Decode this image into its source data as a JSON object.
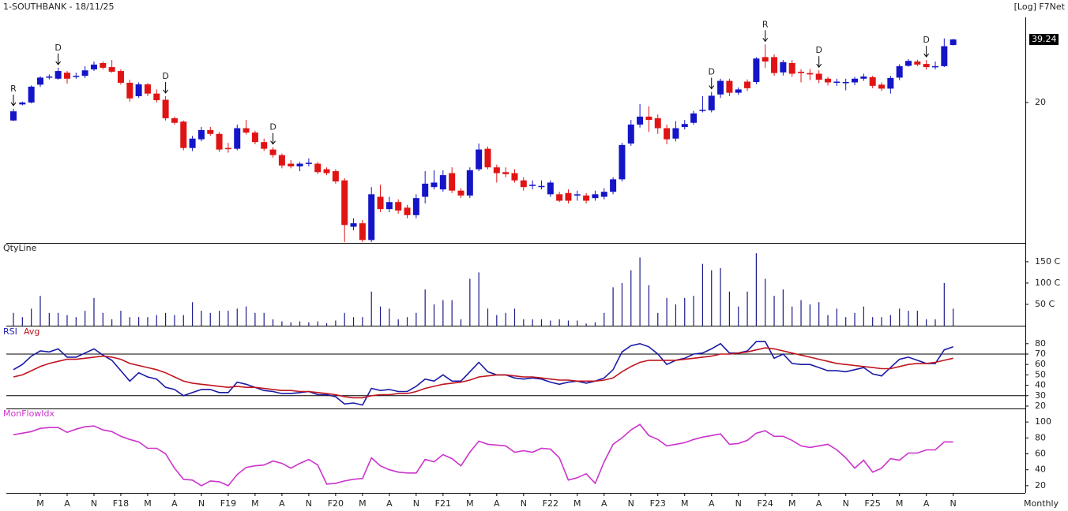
{
  "chart_data": [
    {
      "type": "candlestick",
      "title": "1-SOUTHBANK - 18/11/25",
      "scale_label": "[Log] F7Net",
      "log": true,
      "up_color": "#1414c8",
      "down_color": "#e01414",
      "ylim": [
        4.46,
        49.7
      ],
      "yticks": [
        20
      ],
      "open": [
        16.5,
        19.6,
        20,
        24.2,
        26.1,
        25.8,
        27.5,
        26.4,
        26.6,
        28.5,
        30.5,
        29.2,
        28,
        24.7,
        21.4,
        24.3,
        22,
        20.6,
        16.9,
        16.3,
        12.3,
        13.5,
        14.9,
        14.3,
        12.3,
        12.2,
        15.2,
        14.5,
        13.1,
        12.1,
        11.4,
        10.4,
        10.1,
        10.4,
        10.4,
        9.8,
        9.6,
        8.7,
        5.3,
        5.5,
        4.6,
        7.3,
        6.4,
        6.9,
        6.5,
        6,
        7.3,
        8.1,
        7.9,
        9.4,
        7.8,
        7.4,
        9.8,
        12.2,
        10,
        9.5,
        9.4,
        8.7,
        8.2,
        8.2,
        7.5,
        7.5,
        7.6,
        7.4,
        7.4,
        7.2,
        7.3,
        7.7,
        8.8,
        12.9,
        15.8,
        17.2,
        16.9,
        15.2,
        13.6,
        15.4,
        16.1,
        18.3,
        18.4,
        21.8,
        25.2,
        22.2,
        25,
        24.9,
        32.5,
        32.5,
        27.6,
        30.5,
        27.8,
        27.4,
        27.2,
        25.8,
        24.9,
        24.8,
        24.8,
        25.8,
        26.2,
        24.2,
        23.2,
        26.1,
        29.6,
        31,
        30.2,
        29.3,
        29.5,
        37
      ],
      "high": [
        18.7,
        20.2,
        24,
        26.5,
        27,
        29,
        28,
        27.5,
        29.5,
        31,
        31,
        31.5,
        28.5,
        25.5,
        24.8,
        24.6,
        23,
        21.4,
        17.2,
        16.5,
        14,
        15.4,
        15.4,
        14.6,
        13,
        15.8,
        16.6,
        14.8,
        13.6,
        12.4,
        11.6,
        10.8,
        10.6,
        11,
        10.6,
        10,
        9.8,
        8.9,
        5.8,
        5.7,
        8.1,
        8.3,
        7.3,
        7.1,
        6.7,
        7.5,
        9.6,
        9.7,
        9.7,
        10,
        8,
        10,
        12.9,
        12.5,
        10.3,
        10,
        9.8,
        9,
        8.7,
        8.7,
        8.7,
        7.7,
        7.9,
        7.8,
        7.6,
        7.8,
        8,
        9,
        13,
        16.6,
        19.7,
        19.2,
        17.6,
        15.8,
        16.4,
        16.6,
        18.3,
        21.4,
        22.4,
        25.8,
        25.8,
        23.5,
        25.6,
        32.5,
        37.2,
        33.5,
        31.5,
        31.5,
        28.5,
        28.6,
        28.2,
        26.3,
        25.8,
        25.8,
        26.3,
        27.2,
        26.6,
        24.8,
        26.6,
        30.1,
        31.8,
        31.6,
        31.5,
        31,
        39.7,
        39.5
      ],
      "low": [
        16.4,
        19.4,
        19.8,
        23.6,
        25.6,
        25.5,
        24.5,
        25.8,
        26,
        28,
        28.5,
        27.5,
        24.2,
        20.2,
        21,
        21.4,
        20,
        16.5,
        15.8,
        12,
        11.9,
        13.2,
        14,
        11.8,
        11.7,
        12,
        14.2,
        12.8,
        11.9,
        11.1,
        9.9,
        9.9,
        9.6,
        10.1,
        9.3,
        9.2,
        8.4,
        4.5,
        5.1,
        4.5,
        4.5,
        6.2,
        6.2,
        6.1,
        5.8,
        5.8,
        6.8,
        7.9,
        7.7,
        7.6,
        7.2,
        7.2,
        9.6,
        9.8,
        8.5,
        9,
        8.5,
        7.8,
        7.9,
        7.9,
        7.3,
        6.9,
        6.8,
        7,
        6.8,
        7,
        7.1,
        7.5,
        8.6,
        12.6,
        15.3,
        14.6,
        14.3,
        12.8,
        13.2,
        15,
        15.8,
        18,
        18,
        21,
        21.4,
        21.7,
        22.6,
        24.3,
        29,
        26.6,
        26.7,
        26.3,
        24.8,
        25.4,
        24.6,
        24,
        23.9,
        22.8,
        24.1,
        25.2,
        23.3,
        22.6,
        22,
        25.4,
        29.3,
        29.5,
        28.4,
        28.5,
        29.2,
        36.8
      ],
      "close": [
        18.2,
        20,
        23.7,
        26.1,
        26.4,
        28,
        25.8,
        26.6,
        28.2,
        30,
        29,
        27.8,
        24.7,
        20.9,
        24.3,
        22,
        20.5,
        16.9,
        16.1,
        12.3,
        13.6,
        14.9,
        14.3,
        12.1,
        12.2,
        15.2,
        14.5,
        13.1,
        12.2,
        11.4,
        10.2,
        10.1,
        10.4,
        10.5,
        9.5,
        9.4,
        8.6,
        5.4,
        5.5,
        4.6,
        7.5,
        6.4,
        6.9,
        6.3,
        6,
        7.2,
        8.4,
        8.5,
        9.2,
        7.8,
        7.4,
        9.7,
        12.1,
        10,
        9.4,
        9.3,
        8.7,
        8.1,
        8.3,
        8.2,
        8.5,
        7,
        7,
        7.5,
        7,
        7.5,
        7.7,
        8.8,
        12.7,
        15.8,
        17.2,
        16.6,
        15.2,
        13.5,
        15.2,
        15.9,
        17.8,
        18.5,
        21.5,
        25.2,
        22.2,
        23,
        23.3,
        32,
        31,
        27.4,
        30.8,
        27.2,
        27.4,
        27,
        25.5,
        24.8,
        25,
        24.9,
        25.8,
        26.4,
        23.9,
        23.2,
        26,
        29.5,
        31.2,
        30,
        29.2,
        29.5,
        36.5,
        39.24
      ],
      "signals": [
        "R",
        null,
        null,
        null,
        null,
        "D",
        null,
        null,
        null,
        null,
        null,
        null,
        null,
        null,
        null,
        null,
        null,
        "D",
        null,
        null,
        null,
        null,
        null,
        null,
        null,
        null,
        null,
        null,
        null,
        "D",
        null,
        null,
        null,
        null,
        null,
        null,
        null,
        null,
        null,
        null,
        null,
        null,
        null,
        null,
        null,
        null,
        null,
        null,
        null,
        null,
        null,
        null,
        null,
        null,
        null,
        null,
        null,
        null,
        null,
        null,
        null,
        null,
        null,
        null,
        null,
        null,
        null,
        null,
        null,
        null,
        null,
        null,
        null,
        null,
        null,
        null,
        null,
        null,
        "D",
        null,
        null,
        null,
        null,
        null,
        "R",
        null,
        null,
        null,
        null,
        null,
        "D",
        null,
        null,
        null,
        null,
        null,
        null,
        null,
        null,
        null,
        null,
        null,
        "D",
        null,
        null,
        null
      ]
    },
    {
      "type": "bar",
      "ylim": [
        0,
        185
      ],
      "yticks": [
        {
          "value": 50,
          "label": "50 C"
        },
        {
          "value": 100,
          "label": "100 C"
        },
        {
          "value": 150,
          "label": "150 C"
        }
      ],
      "series": [
        {
          "name": "QtyLine",
          "color": "#1a1a8c",
          "values": [
            30,
            20,
            40,
            70,
            30,
            30,
            25,
            20,
            35,
            65,
            30,
            15,
            35,
            20,
            20,
            20,
            25,
            30,
            25,
            25,
            55,
            35,
            30,
            35,
            35,
            40,
            45,
            30,
            30,
            15,
            10,
            8,
            10,
            8,
            10,
            6,
            12,
            30,
            20,
            20,
            80,
            45,
            40,
            15,
            20,
            30,
            85,
            50,
            60,
            60,
            15,
            110,
            125,
            40,
            25,
            30,
            40,
            15,
            15,
            15,
            12,
            15,
            12,
            12,
            5,
            8,
            30,
            90,
            100,
            130,
            160,
            95,
            30,
            65,
            50,
            65,
            70,
            145,
            130,
            135,
            80,
            45,
            80,
            170,
            110,
            70,
            85,
            45,
            60,
            50,
            55,
            25,
            40,
            20,
            30,
            45,
            20,
            20,
            25,
            40,
            35,
            35,
            15,
            15,
            100,
            40
          ]
        }
      ]
    },
    {
      "type": "line",
      "ylim": [
        17.7,
        95
      ],
      "yticks": [
        20,
        30,
        40,
        50,
        60,
        70,
        80
      ],
      "levels": [
        70,
        30
      ],
      "series": [
        {
          "name": "RSI",
          "color": "#1a1aa6",
          "values": [
            55,
            60,
            68,
            73,
            72,
            75,
            67,
            67,
            71,
            75,
            69,
            64,
            54,
            44,
            52,
            48,
            46,
            38,
            36,
            30,
            33,
            36,
            36,
            33,
            33,
            43,
            41,
            38,
            35,
            34,
            32,
            32,
            33,
            34,
            31,
            31,
            29,
            22,
            23,
            21,
            37,
            35,
            36,
            34,
            34,
            39,
            46,
            44,
            50,
            44,
            44,
            53,
            62,
            53,
            50,
            50,
            47,
            46,
            47,
            46,
            43,
            41,
            43,
            44,
            42,
            44,
            47,
            55,
            72,
            78,
            80,
            77,
            70,
            60,
            64,
            66,
            70,
            71,
            75,
            80,
            71,
            71,
            73,
            82,
            82,
            66,
            70,
            61,
            60,
            60,
            57,
            54,
            54,
            53,
            55,
            57,
            51,
            49,
            57,
            65,
            67,
            64,
            61,
            61,
            74,
            77
          ]
        },
        {
          "name": "Avg",
          "color": "#c0141e",
          "values": [
            48,
            50,
            54,
            58,
            61,
            63,
            65,
            65,
            66,
            67,
            68,
            67,
            65,
            61,
            59,
            57,
            55,
            52,
            48,
            44,
            42,
            41,
            40,
            39,
            38,
            39,
            38,
            38,
            37,
            36,
            35,
            35,
            34,
            34,
            33,
            32,
            31,
            29,
            28,
            28,
            30,
            31,
            31,
            32,
            32,
            34,
            37,
            39,
            41,
            42,
            43,
            45,
            48,
            49,
            50,
            50,
            49,
            48,
            48,
            47,
            46,
            45,
            45,
            44,
            44,
            44,
            45,
            47,
            53,
            58,
            62,
            64,
            64,
            64,
            64,
            65,
            66,
            67,
            68,
            70,
            70,
            71,
            72,
            74,
            76,
            75,
            73,
            71,
            69,
            67,
            65,
            63,
            61,
            60,
            59,
            58,
            57,
            56,
            56,
            58,
            60,
            61,
            61,
            62,
            64,
            66
          ]
        }
      ]
    },
    {
      "type": "line",
      "ylim": [
        11,
        114
      ],
      "yticks": [
        20,
        40,
        60,
        80,
        100
      ],
      "xlabel": "Monthly",
      "categories": [
        null,
        null,
        null,
        "M",
        null,
        null,
        "A",
        null,
        null,
        "N",
        null,
        null,
        "F18",
        null,
        null,
        "M",
        null,
        null,
        "A",
        null,
        null,
        "N",
        null,
        null,
        "F19",
        null,
        null,
        "M",
        null,
        null,
        "A",
        null,
        null,
        "N",
        null,
        null,
        "F20",
        null,
        null,
        "M",
        null,
        null,
        "A",
        null,
        null,
        "N",
        null,
        null,
        "F21",
        null,
        null,
        "M",
        null,
        null,
        "A",
        null,
        null,
        "N",
        null,
        null,
        "F22",
        null,
        null,
        "M",
        null,
        null,
        "A",
        null,
        null,
        "N",
        null,
        null,
        "F23",
        null,
        null,
        "M",
        null,
        null,
        "A",
        null,
        null,
        "N",
        null,
        null,
        "F24",
        null,
        null,
        "M",
        null,
        null,
        "A",
        null,
        null,
        "N",
        null,
        null,
        "F25",
        null,
        null,
        "M",
        null,
        null,
        "A",
        null,
        null,
        "N"
      ],
      "series": [
        {
          "name": "MonFlowIdx",
          "color": "#cc33cc",
          "values": [
            84,
            86,
            88,
            92,
            93,
            93,
            87,
            91,
            94,
            95,
            90,
            88,
            82,
            78,
            75,
            67,
            67,
            60,
            42,
            28,
            27,
            20,
            26,
            25,
            20,
            34,
            43,
            45,
            46,
            51,
            48,
            42,
            48,
            53,
            46,
            22,
            23,
            26,
            28,
            29,
            55,
            45,
            40,
            37,
            36,
            36,
            53,
            50,
            59,
            54,
            45,
            62,
            76,
            72,
            71,
            70,
            62,
            64,
            62,
            67,
            66,
            55,
            27,
            30,
            35,
            23,
            50,
            72,
            80,
            90,
            97,
            83,
            78,
            70,
            72,
            74,
            78,
            81,
            83,
            85,
            72,
            73,
            77,
            86,
            89,
            82,
            82,
            77,
            70,
            68,
            70,
            72,
            65,
            55,
            42,
            52,
            37,
            42,
            54,
            52,
            61,
            61,
            65,
            65,
            75,
            75
          ]
        }
      ]
    }
  ]
}
